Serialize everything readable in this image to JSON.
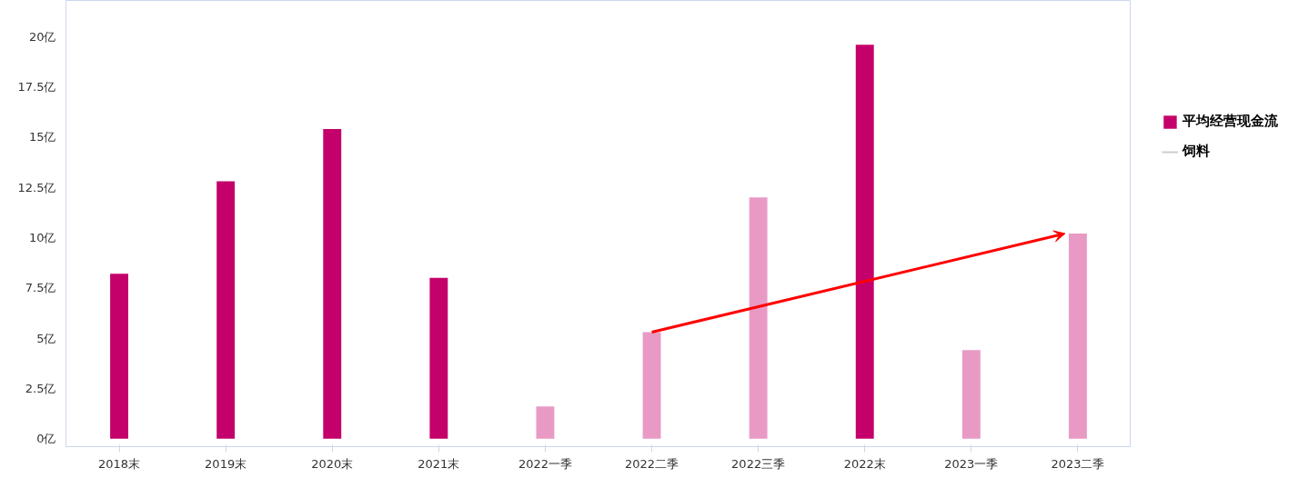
{
  "chart_data": {
    "type": "bar",
    "categories": [
      "2018末",
      "2019末",
      "2020末",
      "2021末",
      "2022一季",
      "2022二季",
      "2022三季",
      "2022末",
      "2023一季",
      "2023二季"
    ],
    "series": [
      {
        "name": "平均经营现金流",
        "color": "#c4006a",
        "colors": [
          "#c4006a",
          "#c4006a",
          "#c4006a",
          "#c4006a",
          "#e89ac4",
          "#e89ac4",
          "#e89ac4",
          "#c4006a",
          "#e89ac4",
          "#e89ac4"
        ],
        "values": [
          8.2,
          12.8,
          15.4,
          8.0,
          1.6,
          5.3,
          12.0,
          19.6,
          4.4,
          10.2
        ]
      },
      {
        "name": "饲料",
        "type": "line",
        "color": "#cccccc",
        "values": [
          null,
          null,
          null,
          null,
          null,
          null,
          null,
          null,
          null,
          null
        ]
      }
    ],
    "ylim": [
      -0.4,
      21.8
    ],
    "yticks": [
      {
        "value": 0,
        "label": "0亿"
      },
      {
        "value": 2.5,
        "label": "2.5亿"
      },
      {
        "value": 5,
        "label": "5亿"
      },
      {
        "value": 7.5,
        "label": "7.5亿"
      },
      {
        "value": 10,
        "label": "10亿"
      },
      {
        "value": 12.5,
        "label": "12.5亿"
      },
      {
        "value": 15,
        "label": "15亿"
      },
      {
        "value": 17.5,
        "label": "17.5亿"
      },
      {
        "value": 20,
        "label": "20亿"
      }
    ],
    "grid": false,
    "legend": "right"
  }
}
